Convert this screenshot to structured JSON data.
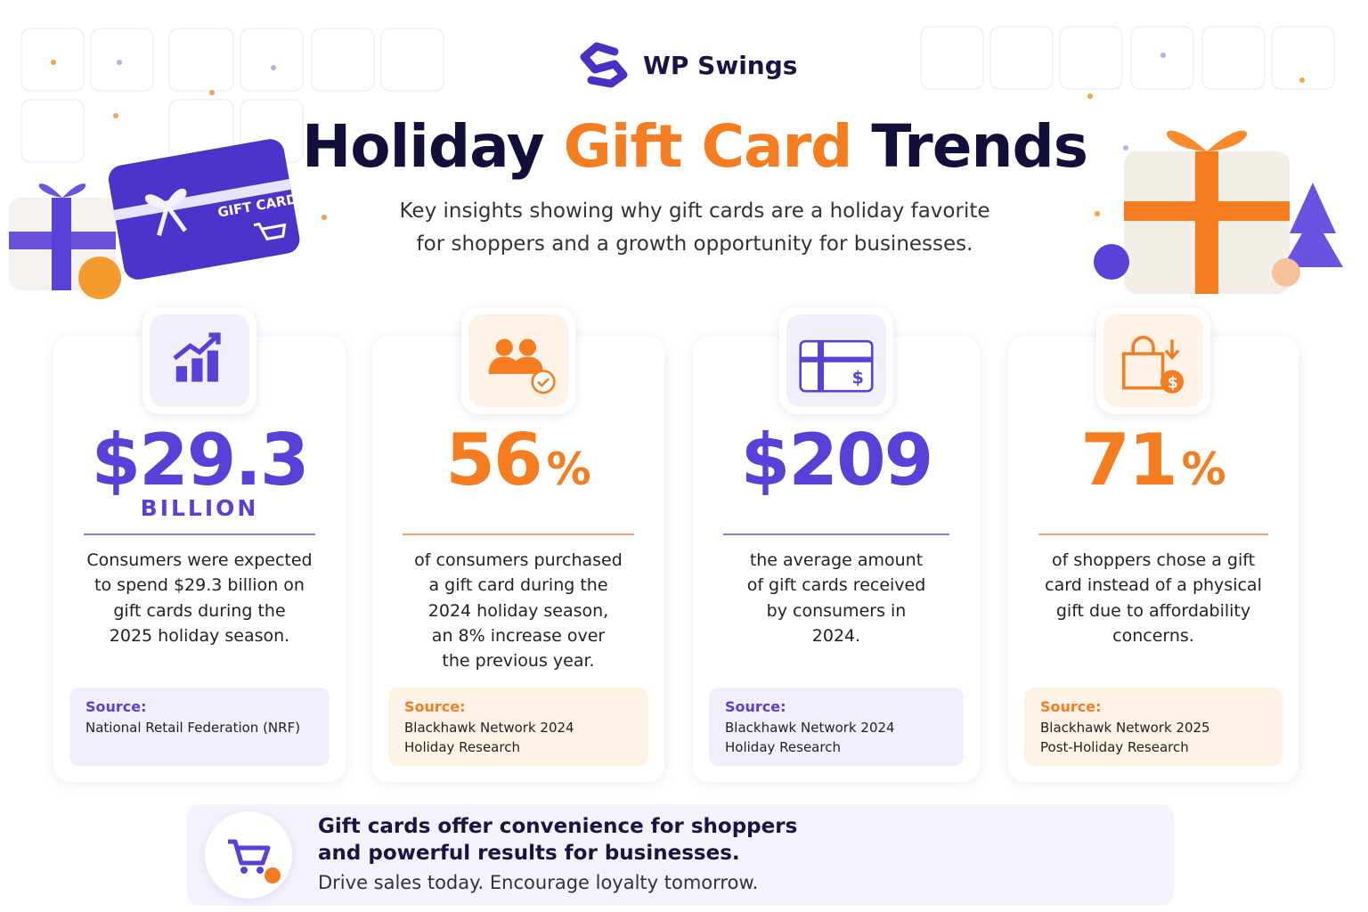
{
  "brand": "WP Swings",
  "title": {
    "part1": "Holiday",
    "part2": "Gift Card",
    "part3": "Trends"
  },
  "subtitle": [
    "Key insights showing why gift cards are a holiday favorite",
    "for shoppers and a growth opportunity for businesses."
  ],
  "illustration": {
    "gift_card_label": "GIFT CARD"
  },
  "cards": [
    {
      "stat": "$29.3",
      "unit": "BILLION",
      "description": [
        "Consumers were expected",
        "to spend $29.3 billion on",
        "gift cards during the",
        "2025 holiday season."
      ],
      "source_label": "Source:",
      "source": [
        "National Retail Federation (NRF)"
      ]
    },
    {
      "stat": "56",
      "unit": "%",
      "description": [
        "of consumers purchased",
        "a gift card during the",
        "2024 holiday season,",
        "an 8% increase over",
        "the previous year."
      ],
      "source_label": "Source:",
      "source": [
        "Blackhawk Network 2024",
        "Holiday Research"
      ]
    },
    {
      "stat": "$209",
      "description": [
        "the average amount",
        "of gift cards received",
        "by consumers in",
        "2024."
      ],
      "source_label": "Source:",
      "source": [
        "Blackhawk Network 2024",
        "Holiday Research"
      ]
    },
    {
      "stat": "71",
      "unit": "%",
      "description": [
        "of shoppers chose a gift",
        "card instead of a physical",
        "gift due to affordability",
        "concerns."
      ],
      "source_label": "Source:",
      "source": [
        "Blackhawk Network 2025",
        "Post-Holiday Research"
      ]
    }
  ],
  "footer": {
    "headline": [
      "Gift cards offer convenience for shoppers",
      "and powerful results for businesses."
    ],
    "tagline": "Drive sales today. Encourage loyalty tomorrow."
  }
}
